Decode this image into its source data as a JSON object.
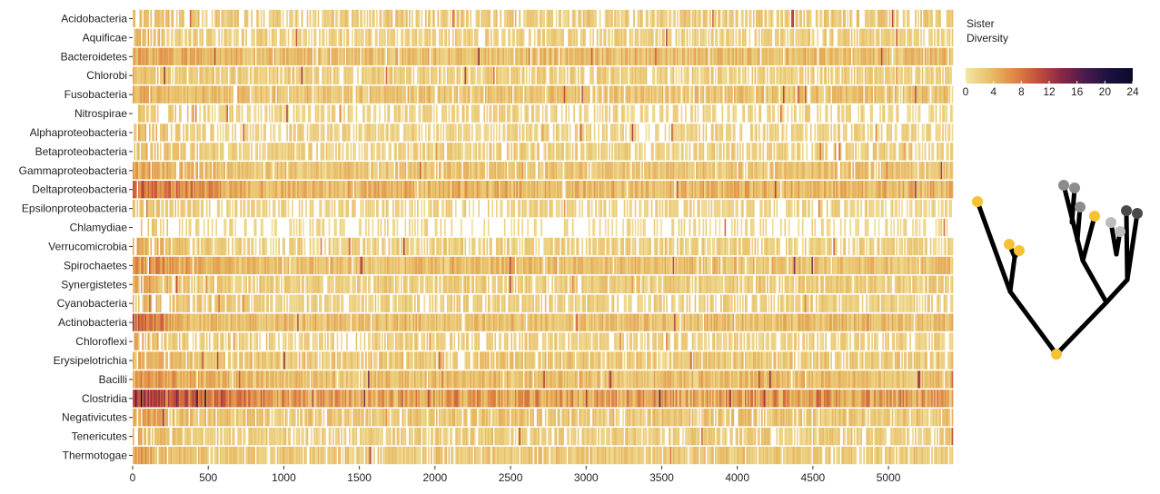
{
  "chart_data": {
    "type": "heatmap",
    "title": "",
    "xlabel": "",
    "ylabel": "",
    "xlim": [
      0,
      5420
    ],
    "x_ticks": [
      0,
      500,
      1000,
      1500,
      2000,
      2500,
      3000,
      3500,
      4000,
      4500,
      5000
    ],
    "x_tick_labels": [
      "0",
      "500",
      "1000",
      "1500",
      "2000",
      "2500",
      "3000",
      "3500",
      "4000",
      "4500",
      "5000"
    ],
    "rows": [
      {
        "name": "Acidobacteria",
        "base": 2.6,
        "head": 4.2,
        "head_len": 500,
        "density": 0.7
      },
      {
        "name": "Aquificae",
        "base": 2.2,
        "head": 6.5,
        "head_len": 250,
        "density": 0.72
      },
      {
        "name": "Bacteroidetes",
        "base": 3.6,
        "head": 5.5,
        "head_len": 700,
        "density": 0.96
      },
      {
        "name": "Chlorobi",
        "base": 2.4,
        "head": 3.5,
        "head_len": 400,
        "density": 0.8
      },
      {
        "name": "Fusobacteria",
        "base": 3.2,
        "head": 5.0,
        "head_len": 700,
        "density": 0.92
      },
      {
        "name": "Nitrospirae",
        "base": 2.0,
        "head": 3.5,
        "head_len": 400,
        "density": 0.55
      },
      {
        "name": "Alphaproteobacteria",
        "base": 2.0,
        "head": 4.5,
        "head_len": 500,
        "density": 0.6
      },
      {
        "name": "Betaproteobacteria",
        "base": 2.3,
        "head": 4.0,
        "head_len": 500,
        "density": 0.7
      },
      {
        "name": "Gammaproteobacteria",
        "base": 3.0,
        "head": 5.5,
        "head_len": 700,
        "density": 0.9
      },
      {
        "name": "Deltaproteobacteria",
        "base": 4.2,
        "head": 11.0,
        "head_len": 800,
        "density": 0.99
      },
      {
        "name": "Epsilonproteobacteria",
        "base": 2.0,
        "head": 3.8,
        "head_len": 500,
        "density": 0.55
      },
      {
        "name": "Chlamydiae",
        "base": 1.6,
        "head": 3.5,
        "head_len": 400,
        "density": 0.35
      },
      {
        "name": "Verrucomicrobia",
        "base": 2.3,
        "head": 6.0,
        "head_len": 400,
        "density": 0.7
      },
      {
        "name": "Spirochaetes",
        "base": 3.4,
        "head": 8.0,
        "head_len": 700,
        "density": 0.95
      },
      {
        "name": "Synergistetes",
        "base": 2.5,
        "head": 6.5,
        "head_len": 400,
        "density": 0.82
      },
      {
        "name": "Cyanobacteria",
        "base": 2.3,
        "head": 4.5,
        "head_len": 500,
        "density": 0.7
      },
      {
        "name": "Actinobacteria",
        "base": 3.5,
        "head": 11.0,
        "head_len": 400,
        "density": 0.98
      },
      {
        "name": "Chloroflexi",
        "base": 2.3,
        "head": 6.5,
        "head_len": 250,
        "density": 0.65
      },
      {
        "name": "Erysipelotrichia",
        "base": 2.8,
        "head": 5.0,
        "head_len": 500,
        "density": 0.85
      },
      {
        "name": "Bacilli",
        "base": 3.4,
        "head": 6.5,
        "head_len": 900,
        "density": 0.96
      },
      {
        "name": "Clostridia",
        "base": 5.6,
        "head": 13.0,
        "head_len": 1100,
        "density": 1.0
      },
      {
        "name": "Negativicutes",
        "base": 2.9,
        "head": 6.0,
        "head_len": 500,
        "density": 0.85
      },
      {
        "name": "Tenericutes",
        "base": 2.4,
        "head": 5.0,
        "head_len": 500,
        "density": 0.75
      },
      {
        "name": "Thermotogae",
        "base": 2.8,
        "head": 6.5,
        "head_len": 400,
        "density": 0.88
      }
    ],
    "colorbar": {
      "title_line1": "Sister",
      "title_line2": "Diversity",
      "range": [
        0,
        24
      ],
      "ticks": [
        0,
        4,
        8,
        12,
        16,
        20,
        24
      ],
      "tick_labels": [
        "0",
        "4",
        "8",
        "12",
        "16",
        "20",
        "24"
      ],
      "colors": [
        "#f3e6a3",
        "#e8c06a",
        "#e08a45",
        "#c4503d",
        "#8a2844",
        "#4c1a4c",
        "#1b1140",
        "#0a0a2a"
      ]
    },
    "tree_tip_colors": [
      "#f6c232",
      "#8c8c8c",
      "#bcbcbc",
      "#4a4a4a"
    ]
  }
}
